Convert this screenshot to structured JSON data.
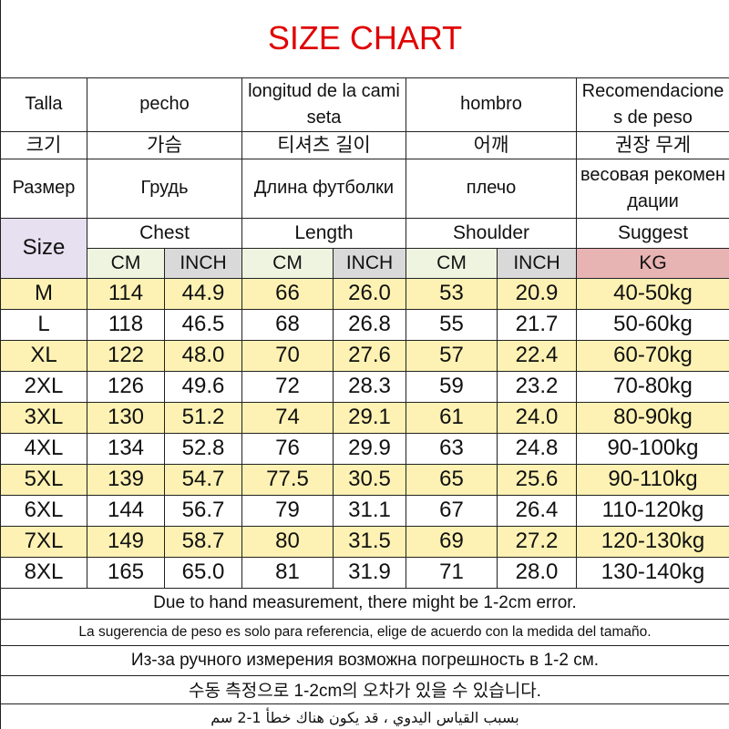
{
  "title": "SIZE CHART",
  "header_rows": [
    [
      "Talla",
      "pecho",
      "longitud de la camiseta",
      "hombro",
      "Recomendaciones de peso"
    ],
    [
      "크기",
      "가슴",
      "티셔츠 길이",
      "어깨",
      "권장 무게"
    ],
    [
      "Размер",
      "Грудь",
      "Длина футболки",
      "плечо",
      "весовая рекомендации"
    ]
  ],
  "size_label": "Size",
  "groups": [
    "Chest",
    "Length",
    "Shoulder",
    "Suggest"
  ],
  "units": [
    "CM",
    "INCH",
    "CM",
    "INCH",
    "CM",
    "INCH",
    "KG"
  ],
  "rows": [
    [
      "M",
      "114",
      "44.9",
      "66",
      "26.0",
      "53",
      "20.9",
      "40-50kg"
    ],
    [
      "L",
      "118",
      "46.5",
      "68",
      "26.8",
      "55",
      "21.7",
      "50-60kg"
    ],
    [
      "XL",
      "122",
      "48.0",
      "70",
      "27.6",
      "57",
      "22.4",
      "60-70kg"
    ],
    [
      "2XL",
      "126",
      "49.6",
      "72",
      "28.3",
      "59",
      "23.2",
      "70-80kg"
    ],
    [
      "3XL",
      "130",
      "51.2",
      "74",
      "29.1",
      "61",
      "24.0",
      "80-90kg"
    ],
    [
      "4XL",
      "134",
      "52.8",
      "76",
      "29.9",
      "63",
      "24.8",
      "90-100kg"
    ],
    [
      "5XL",
      "139",
      "54.7",
      "77.5",
      "30.5",
      "65",
      "25.6",
      "90-110kg"
    ],
    [
      "6XL",
      "144",
      "56.7",
      "79",
      "31.1",
      "67",
      "26.4",
      "110-120kg"
    ],
    [
      "7XL",
      "149",
      "58.7",
      "80",
      "31.5",
      "69",
      "27.2",
      "120-130kg"
    ],
    [
      "8XL",
      "165",
      "65.0",
      "81",
      "31.9",
      "71",
      "28.0",
      "130-140kg"
    ]
  ],
  "notes": [
    "Due to hand measurement, there might be 1-2cm error.",
    "La sugerencia de peso es solo para referencia, elige de acuerdo con la medida del tamaño.",
    "Из-за ручного измерения возможна погрешность в 1-2 см.",
    "수동 측정으로 1-2cm의 오차가 있을 수 있습니다.",
    "بسبب القياس اليدوي ، قد يكون هناك خطأ 1-2 سم"
  ]
}
